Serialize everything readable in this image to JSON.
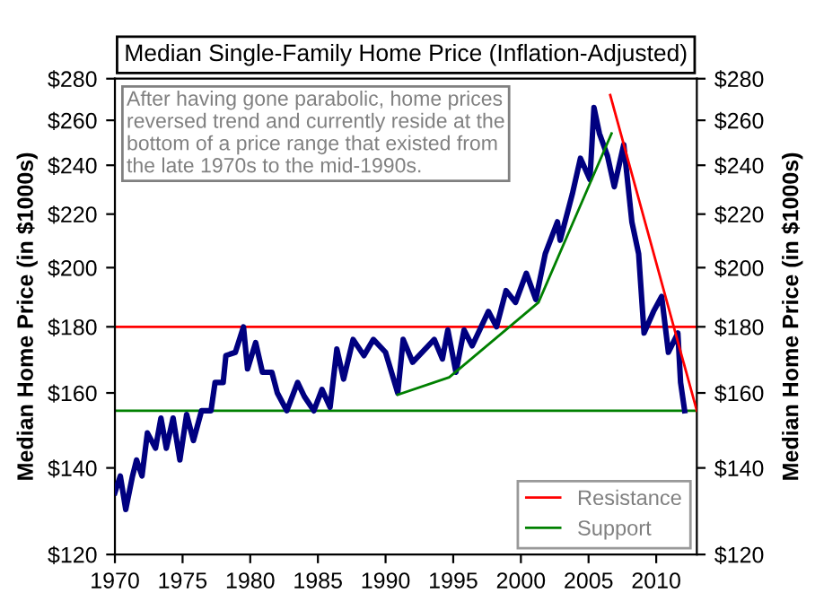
{
  "chart_data": {
    "type": "line",
    "title": "Median Single-Family Home Price (Inflation-Adjusted)",
    "ylabel": "Median Home Price (in $1000s)",
    "y2label": "Median Home Price (in $1000s)",
    "annotations": [
      "After having gone parabolic, home prices\nreversed trend and currently reside at the\nbottom of a price range that existed from\nthe late 1970s to the mid-1990s."
    ],
    "log": "y",
    "xlim": [
      1970,
      2013
    ],
    "xticks": [
      1970,
      1975,
      1980,
      1985,
      1990,
      1995,
      2000,
      2005,
      2010
    ],
    "ylim": [
      120,
      280
    ],
    "yticks": [
      {
        "value": 120,
        "label": "$120"
      },
      {
        "value": 140,
        "label": "$140"
      },
      {
        "value": 160,
        "label": "$160"
      },
      {
        "value": 180,
        "label": "$180"
      },
      {
        "value": 200,
        "label": "$200"
      },
      {
        "value": 220,
        "label": "$220"
      },
      {
        "value": 240,
        "label": "$240"
      },
      {
        "value": 260,
        "label": "$260"
      },
      {
        "value": 280,
        "label": "$280"
      }
    ],
    "grid": false,
    "legend": "bottom right",
    "marker": "none",
    "line_style": "solid",
    "ref_lines": [
      {
        "axis": "y",
        "value": 180,
        "color": "#ff0000"
      },
      {
        "axis": "y",
        "value": 155,
        "color": "#008000"
      }
    ],
    "series": [
      {
        "color": "#000080",
        "x": [
          1970,
          1970.4,
          1970.8,
          1971.3,
          1971.6,
          1972,
          1972.4,
          1973,
          1973.4,
          1973.8,
          1974.3,
          1974.8,
          1975.3,
          1975.8,
          1976.4,
          1977.1,
          1977.4,
          1978,
          1978.2,
          1978.9,
          1979.5,
          1979.8,
          1980.4,
          1980.9,
          1981.6,
          1982,
          1982.7,
          1983.5,
          1984,
          1984.7,
          1985.3,
          1985.9,
          1986.4,
          1986.9,
          1987.6,
          1988.4,
          1989.1,
          1990,
          1990.9,
          1991.3,
          1992,
          1993.6,
          1994.2,
          1994.6,
          1995.2,
          1995.8,
          1996.4,
          1997.6,
          1998.2,
          1998.9,
          1999.6,
          2000.4,
          2001.1,
          2001.8,
          2002.7,
          2002.9,
          2003.8,
          2004.4,
          2005.1,
          2005.4,
          2005.8,
          2006.4,
          2006.9,
          2007.6,
          2008.2,
          2008.7,
          2009.1,
          2009.8,
          2010.4,
          2010.9,
          2011.6,
          2011.8,
          2012.1
        ],
        "values": [
          134,
          138,
          130,
          138,
          142,
          138,
          149,
          145,
          153,
          145,
          153,
          142,
          154,
          147,
          155,
          155,
          163,
          163,
          171,
          172,
          180,
          167,
          175,
          166,
          166,
          160,
          155,
          163,
          159,
          155,
          161,
          156,
          173,
          164,
          176,
          171,
          176,
          172,
          160,
          176,
          169,
          176,
          170,
          179,
          166,
          179,
          174,
          185,
          180,
          192,
          188,
          198,
          189,
          205,
          217,
          210,
          228,
          243,
          234,
          266,
          254,
          244,
          231,
          249,
          217,
          205,
          178,
          185,
          190,
          172,
          178,
          163,
          155
        ]
      },
      {
        "name": "Resistance",
        "color": "#ff0000",
        "x": [
          2006.6,
          2013
        ],
        "values": [
          272,
          155
        ]
      },
      {
        "name": "Support",
        "color": "#008000",
        "x": [
          1990.9,
          1994.7,
          2001.3,
          2006.7
        ],
        "values": [
          159.5,
          164.5,
          188,
          254
        ]
      }
    ]
  }
}
